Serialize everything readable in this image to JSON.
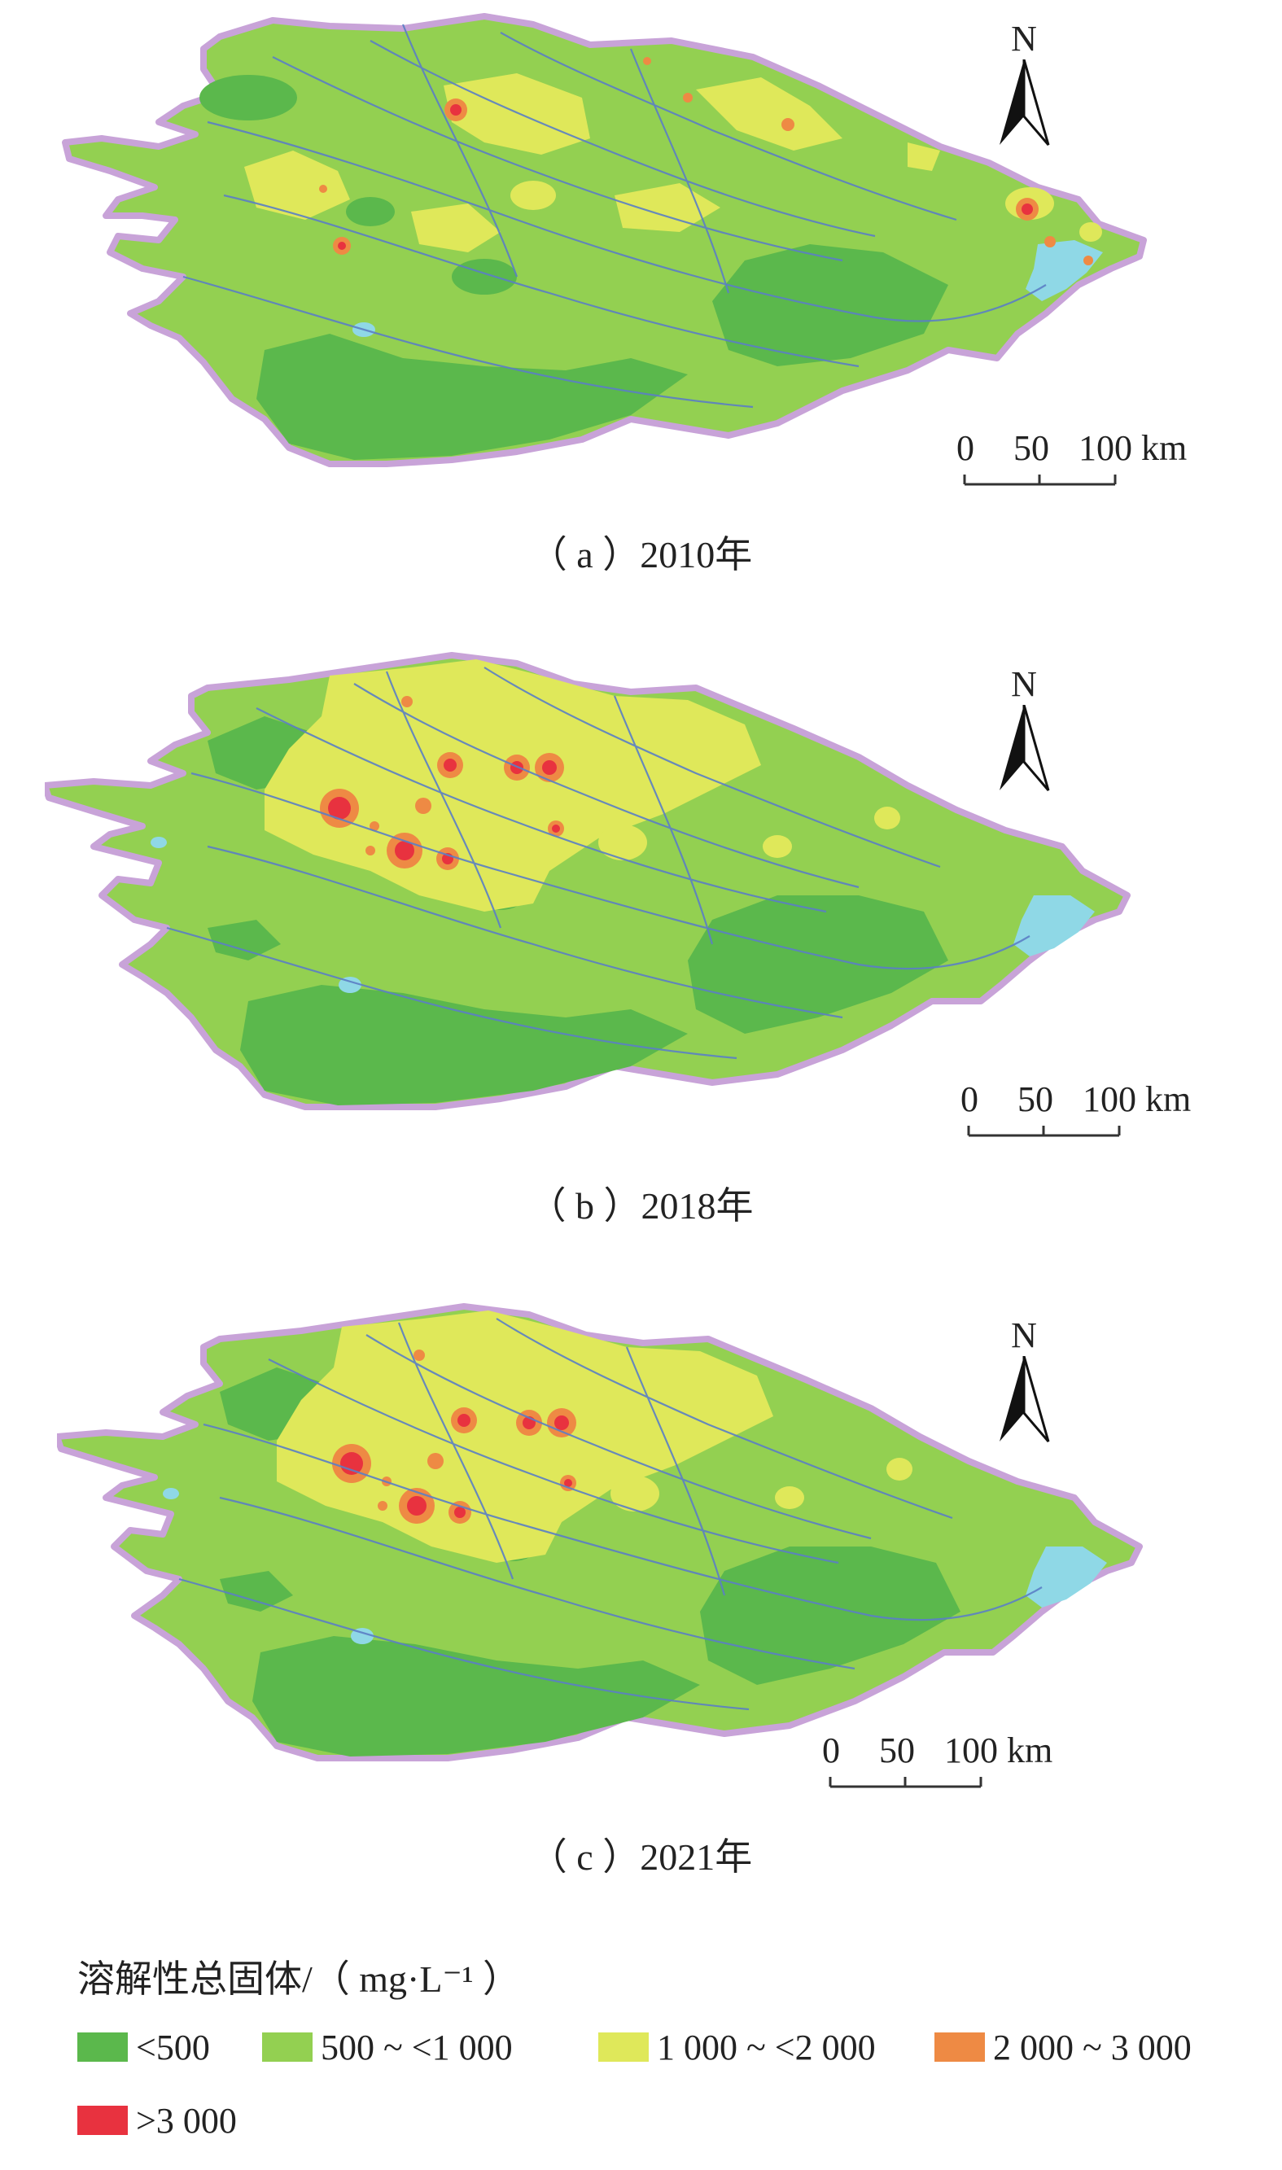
{
  "north_label": "N",
  "scale": {
    "zero": "0",
    "mid": "50",
    "end": "100 km"
  },
  "panels": [
    {
      "caption": "（ a ）2010年"
    },
    {
      "caption": "（ b ）2018年"
    },
    {
      "caption": "（ c ）2021年"
    }
  ],
  "legend": {
    "title": "溶解性总固体/（ mg·L⁻¹ ）",
    "items": [
      {
        "label": "<500",
        "color": "#5bb84c"
      },
      {
        "label": "500 ~ <1 000",
        "color": "#93d051"
      },
      {
        "label": "1 000 ~ <2 000",
        "color": "#dfe85a"
      },
      {
        "label": "2 000 ~ 3 000",
        "color": "#ee8a44"
      },
      {
        "label": ">3 000",
        "color": "#e8323f"
      }
    ]
  },
  "colors": {
    "water": "#8fd8e6",
    "boundary": "#c8a3d8",
    "river": "#5b7fc5"
  }
}
